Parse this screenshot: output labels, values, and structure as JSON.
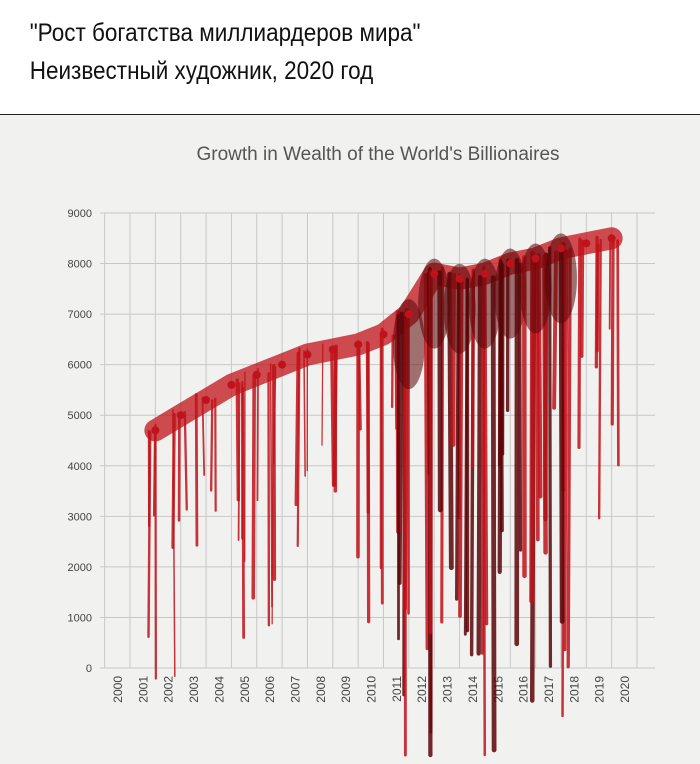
{
  "caption": {
    "line1": "\"Рост богатства миллиардеров мира\"",
    "line2": "Неизвестный художник, 2020 год"
  },
  "chart_data": {
    "type": "line",
    "title": "Growth in Wealth of the World's Billionaires",
    "xlabel": "",
    "ylabel": "",
    "ylim": [
      0,
      9000
    ],
    "yticks": [
      "0",
      "1000",
      "2000",
      "3000",
      "4000",
      "5000",
      "6000",
      "7000",
      "8000",
      "9000"
    ],
    "xticks": [
      "2000",
      "2001",
      "2002",
      "2003",
      "2004",
      "2005",
      "2006",
      "2007",
      "2008",
      "2009",
      "2010",
      "2011",
      "2012",
      "2013",
      "2014",
      "2015",
      "2016",
      "2017",
      "2018",
      "2019",
      "2020"
    ],
    "grid": true,
    "x": [
      2001,
      2002,
      2003,
      2004,
      2005,
      2006,
      2007,
      2008,
      2009,
      2010,
      2011,
      2012,
      2013,
      2014,
      2015,
      2016,
      2017,
      2018,
      2019
    ],
    "values": [
      4700,
      5000,
      5300,
      5600,
      5800,
      6000,
      6200,
      6300,
      6400,
      6600,
      7000,
      7800,
      7700,
      7800,
      8000,
      8100,
      8300,
      8400,
      8500
    ],
    "colors": {
      "blood": "#c0121a",
      "dark_blood": "#5a0508",
      "grid": "#c8c8c8"
    }
  }
}
